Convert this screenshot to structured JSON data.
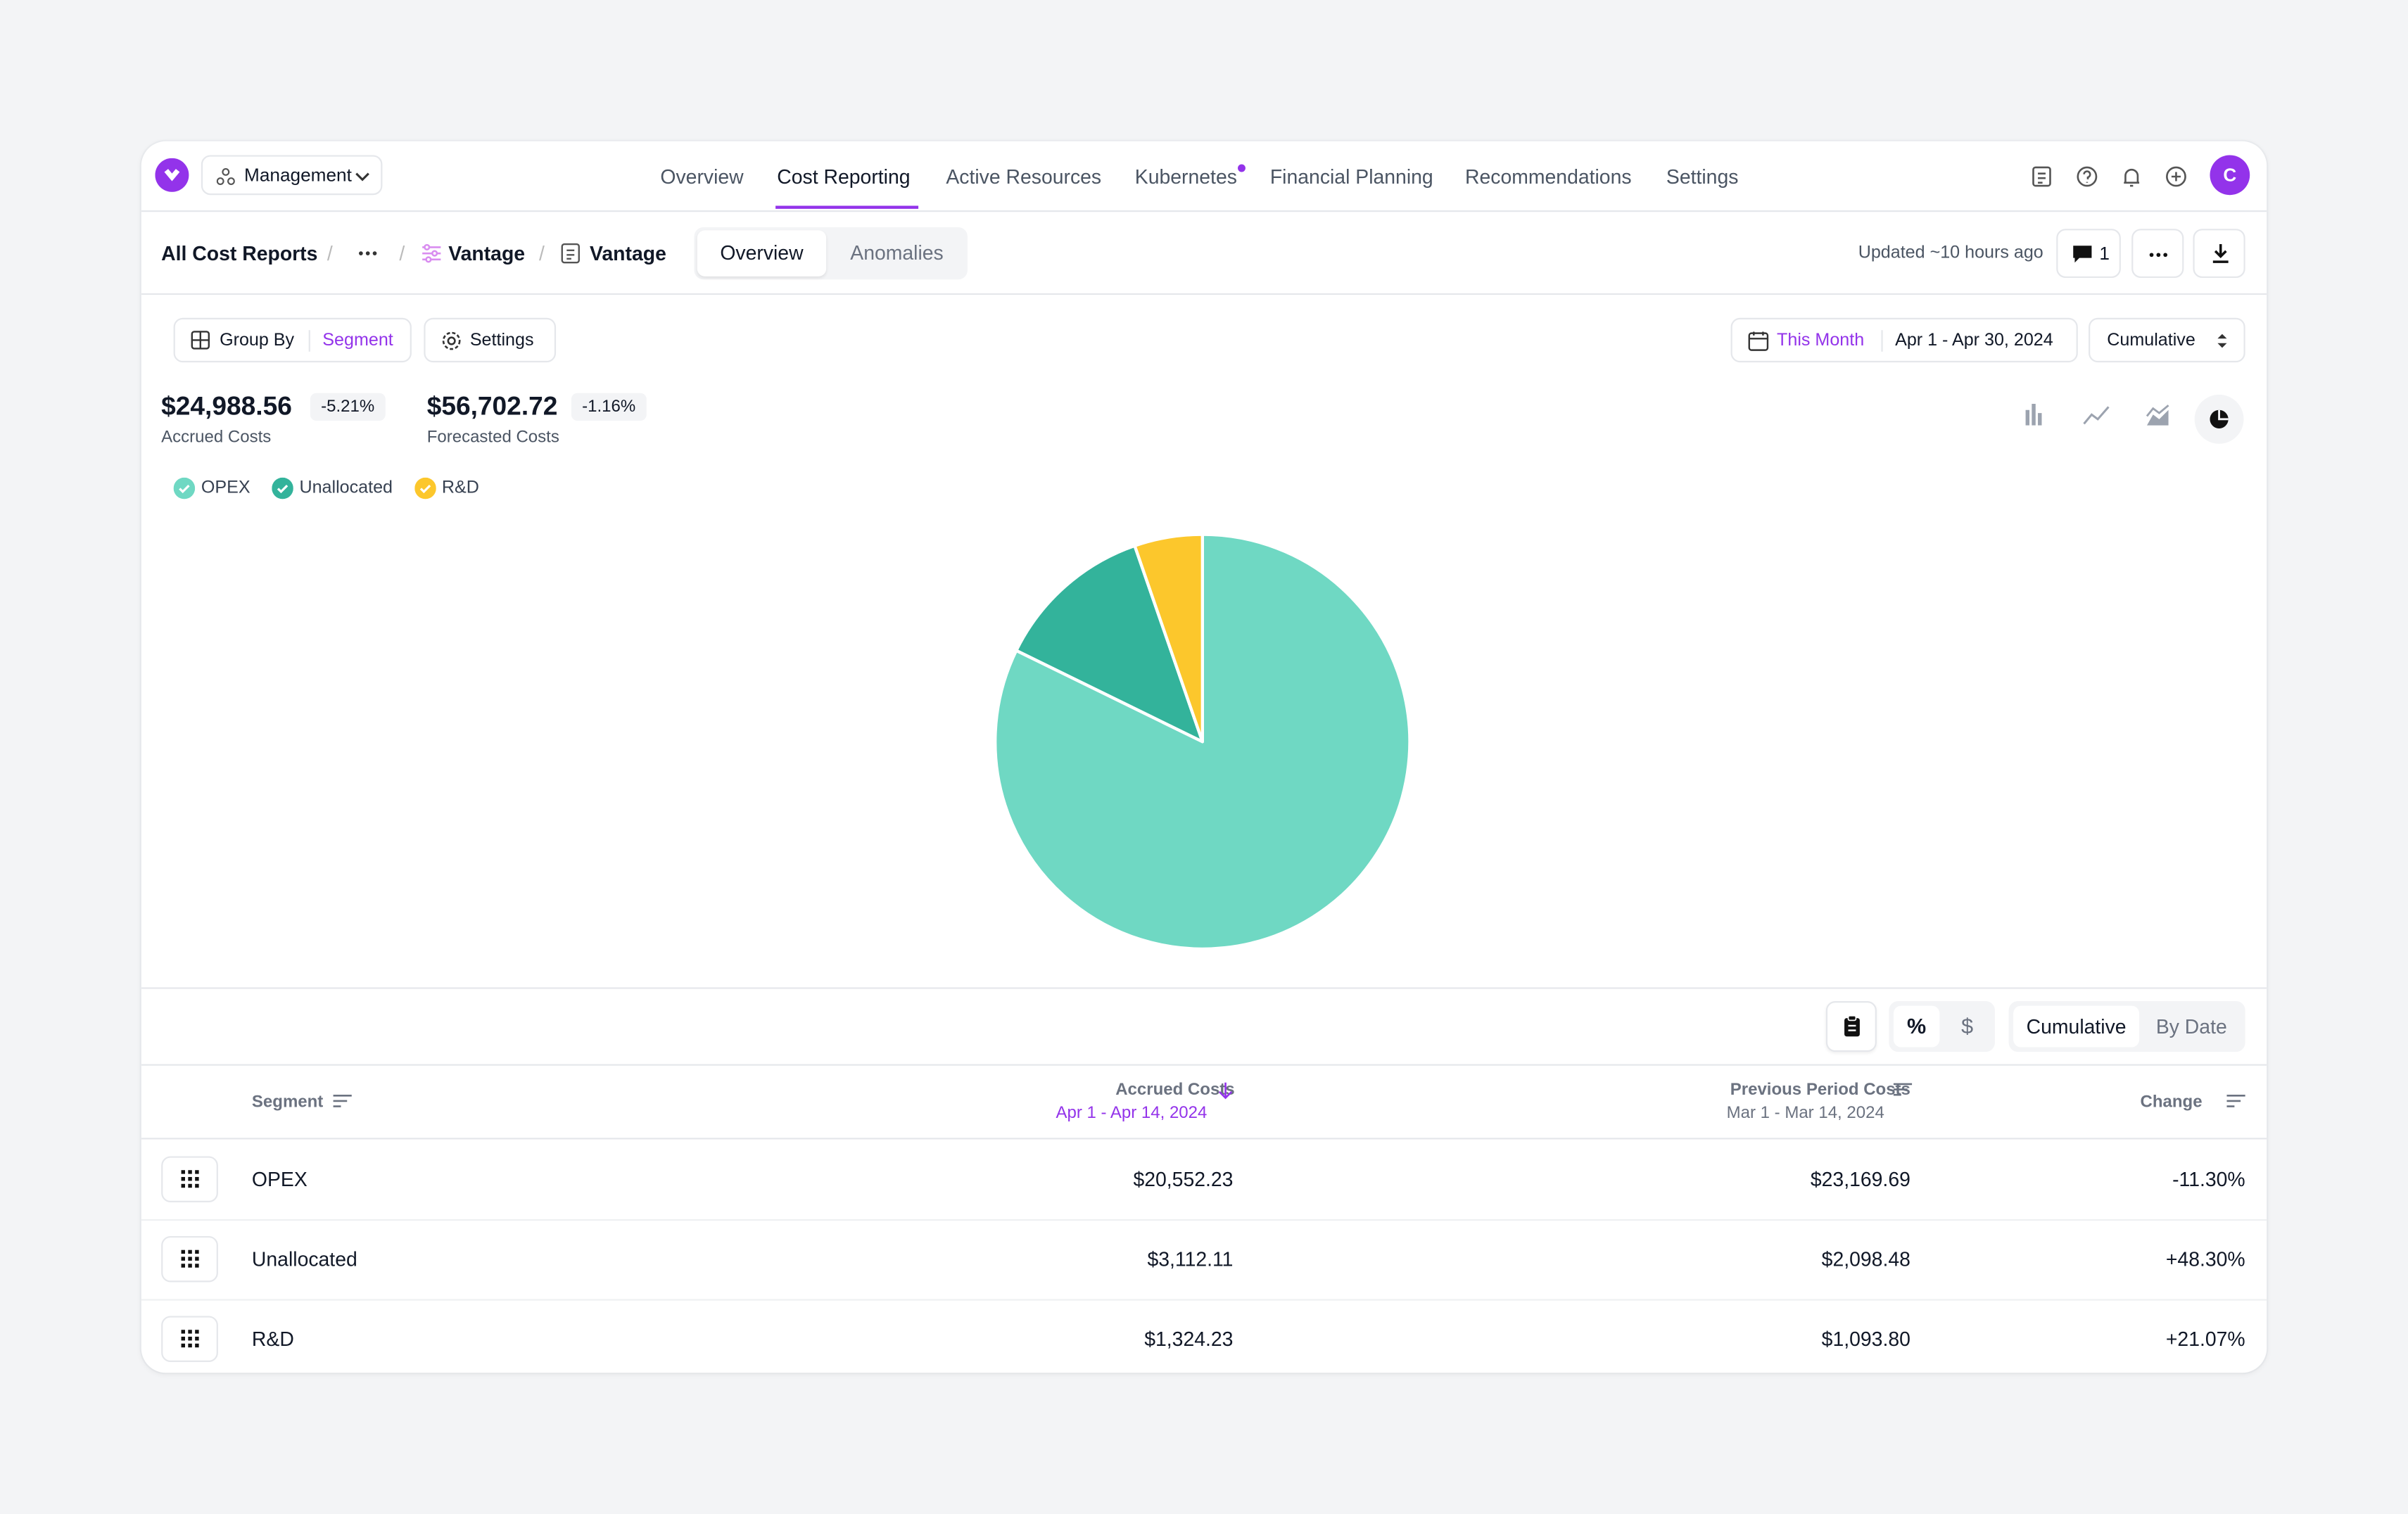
{
  "nav": {
    "workspace": "Management",
    "links": [
      "Overview",
      "Cost Reporting",
      "Active Resources",
      "Kubernetes",
      "Financial Planning",
      "Recommendations",
      "Settings"
    ],
    "avatar": "C"
  },
  "breadcrumbs": [
    "All Cost Reports",
    "Vantage",
    "Vantage"
  ],
  "tabs": [
    "Overview",
    "Anomalies"
  ],
  "updated": "Updated ~10 hours ago",
  "comments": "1",
  "controls": {
    "group_by": "Group By",
    "segment": "Segment",
    "settings": "Settings",
    "period": "This Month",
    "range": "Apr 1 - Apr 30, 2024",
    "mode": "Cumulative"
  },
  "summary": [
    {
      "value": "$24,988.56",
      "change": "-5.21%",
      "label": "Accrued Costs"
    },
    {
      "value": "$56,702.72",
      "change": "-1.16%",
      "label": "Forecasted Costs"
    }
  ],
  "chart_data": {
    "type": "pie",
    "categories": [
      "OPEX",
      "Unallocated",
      "R&D"
    ],
    "values": [
      20552.23,
      3112.11,
      1324.23
    ],
    "colors": [
      "#6fd8c3",
      "#33b39b",
      "#fcc72c"
    ]
  },
  "table": {
    "toolbar": {
      "percent": "%",
      "dollar": "$",
      "cumulative": "Cumulative",
      "by_date": "By Date"
    },
    "columns": [
      {
        "title": "Segment"
      },
      {
        "title": "Accrued Costs",
        "subtitle": "Apr 1 - Apr 14, 2024"
      },
      {
        "title": "Previous Period Costs",
        "subtitle": "Mar 1 - Mar 14, 2024"
      },
      {
        "title": "Change"
      }
    ],
    "rows": [
      [
        "OPEX",
        "$20,552.23",
        "$23,169.69",
        "-11.30%"
      ],
      [
        "Unallocated",
        "$3,112.11",
        "$2,098.48",
        "+48.30%"
      ],
      [
        "R&D",
        "$1,324.23",
        "$1,093.80",
        "+21.07%"
      ]
    ]
  }
}
